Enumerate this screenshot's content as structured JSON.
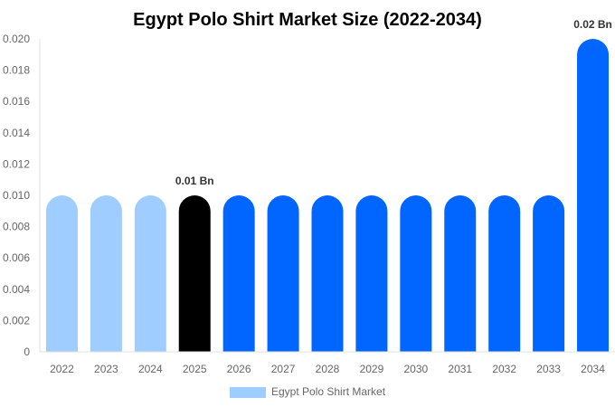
{
  "chart_data": {
    "type": "bar",
    "title": "Egypt Polo Shirt Market Size (2022-2034)",
    "categories": [
      "2022",
      "2023",
      "2024",
      "2025",
      "2026",
      "2027",
      "2028",
      "2029",
      "2030",
      "2031",
      "2032",
      "2033",
      "2034"
    ],
    "series": [
      {
        "name": "Egypt Polo Shirt Market",
        "values": [
          0.01,
          0.01,
          0.01,
          0.01,
          0.01,
          0.01,
          0.01,
          0.01,
          0.01,
          0.01,
          0.01,
          0.01,
          0.02
        ]
      }
    ],
    "bar_colors": [
      "#a0cdff",
      "#a0cdff",
      "#a0cdff",
      "#000000",
      "#0066ff",
      "#0066ff",
      "#0066ff",
      "#0066ff",
      "#0066ff",
      "#0066ff",
      "#0066ff",
      "#0066ff",
      "#0066ff"
    ],
    "data_labels": [
      {
        "category": "2025",
        "text": "0.01 Bn"
      },
      {
        "category": "2034",
        "text": "0.02 Bn"
      }
    ],
    "yticks": [
      "0",
      "0.002",
      "0.004",
      "0.006",
      "0.008",
      "0.010",
      "0.012",
      "0.014",
      "0.016",
      "0.018",
      "0.020"
    ],
    "ylim": [
      0,
      0.02
    ],
    "xlabel": "",
    "ylabel": "",
    "grid": false,
    "legend_position": "bottom",
    "legend_color": "#a0cdff"
  }
}
